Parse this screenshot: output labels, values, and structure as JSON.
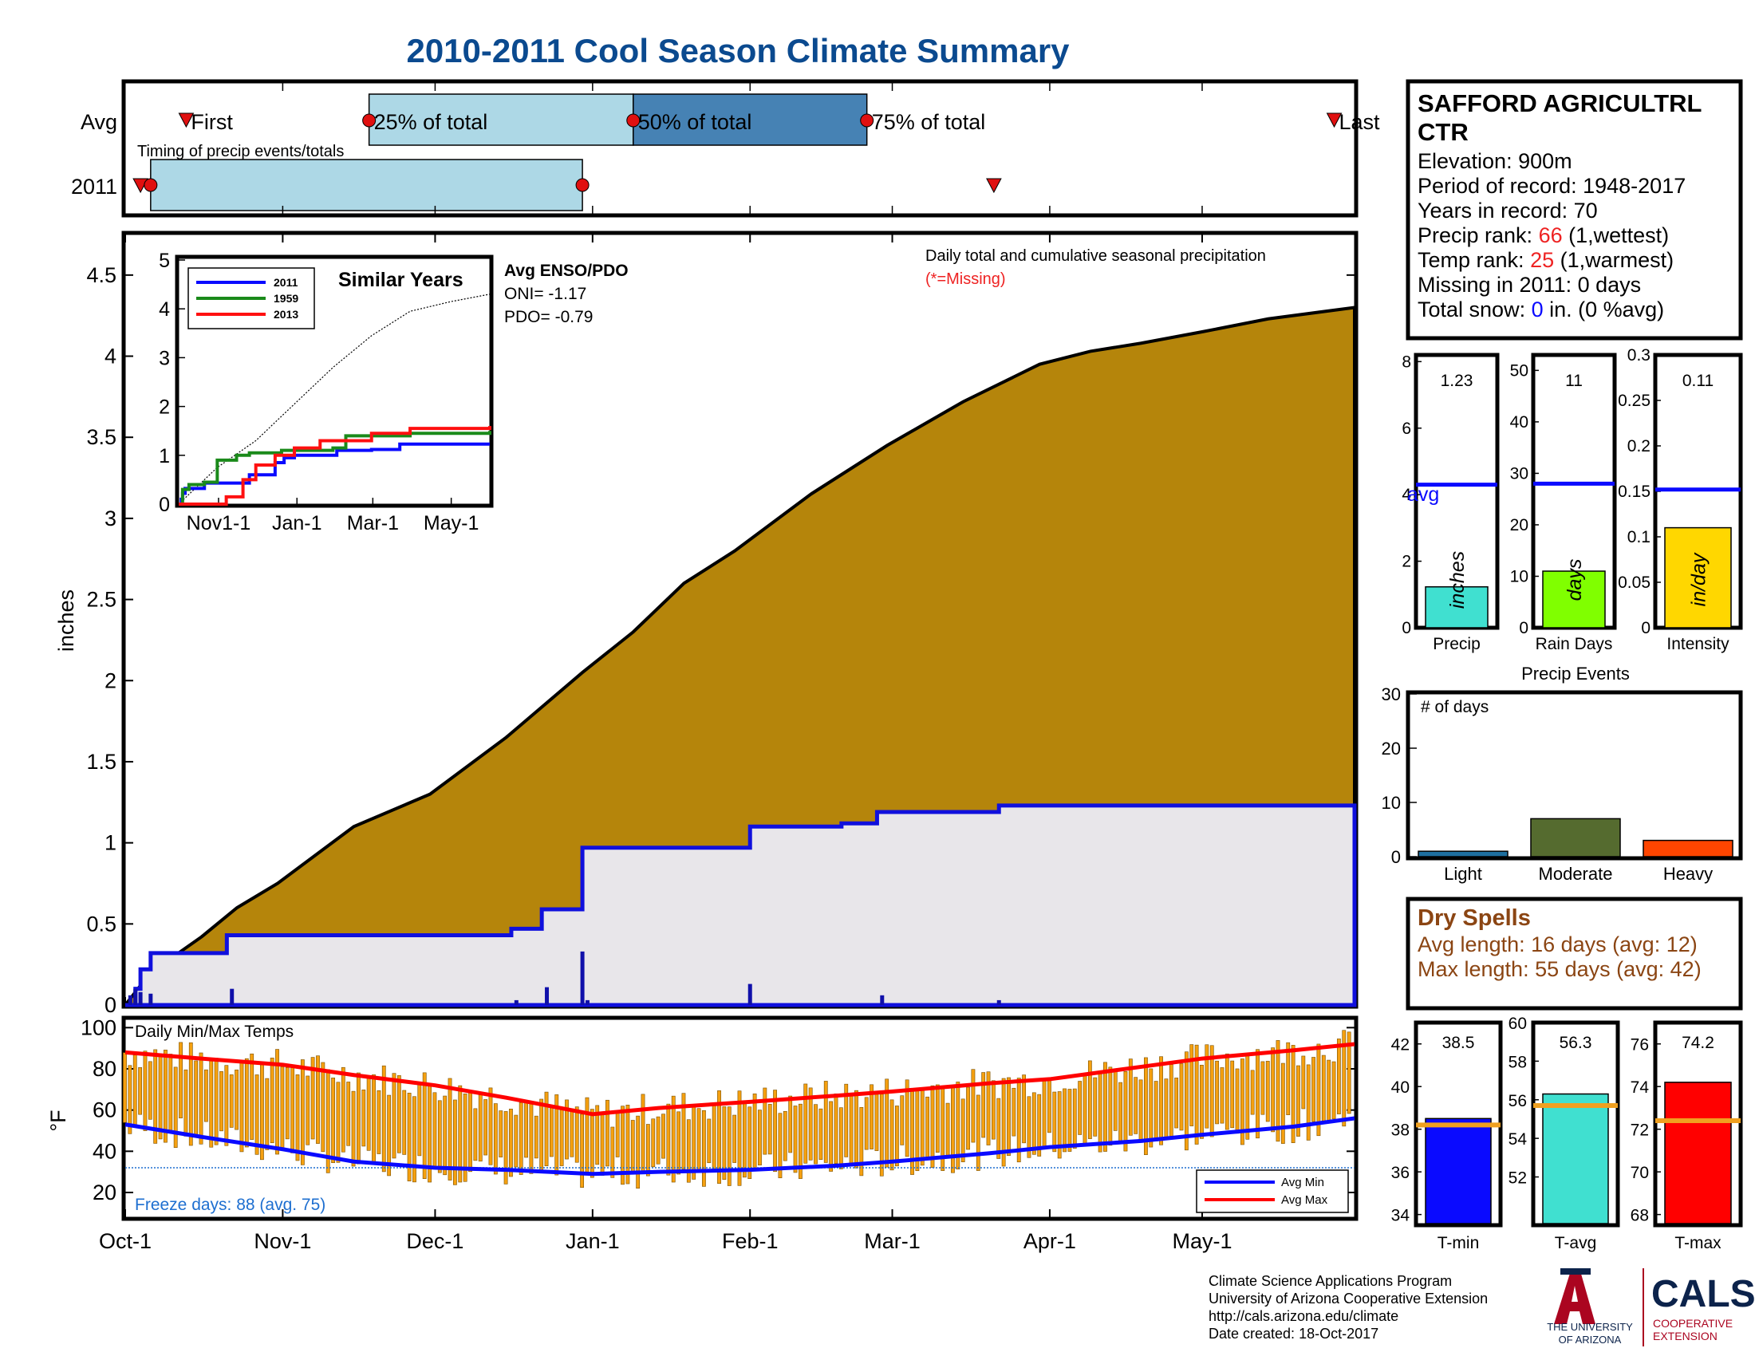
{
  "title": "2010-2011 Cool Season Climate Summary",
  "colors": {
    "title": "#0b4a8f",
    "cumulative_avg": "#b5850b",
    "cumulative_2011": "#1010dd",
    "fill_2011": "#e8e6ea",
    "box_light": "#add8e6",
    "box_dark": "#4682b4",
    "marker": "#e01010",
    "tmin": "#0a0aff",
    "tavg": "#40e0d0",
    "tmax": "#ff0000",
    "avg_line": "#f0a020",
    "precip_bar": "#40e0d0",
    "raindays_bar": "#80ff00",
    "intensity_bar": "#ffd700",
    "light": "#1e6f9f",
    "moderate": "#556b2f",
    "heavy": "#ff4500",
    "dryspell": "#8b4513",
    "red": "#ee2222",
    "blue": "#0a0aff",
    "ua_red": "#ab0520",
    "ua_navy": "#0c234b"
  },
  "timing_panel": {
    "avg_label": "Avg",
    "year_label": "2011",
    "annotation": "Timing of precip events/totals",
    "first_label": "First",
    "p25_label": "25% of total",
    "p50_label": "50% of total",
    "p75_label": "75% of total",
    "last_label": "Last",
    "avg_first": 12,
    "avg_p25": 48,
    "avg_p50": 100,
    "avg_p75": 146,
    "avg_last": 238,
    "y2011_first": 3,
    "y2011_p25": 5,
    "y2011_p50": 90,
    "y2011_last": 171
  },
  "station_box": {
    "name": "SAFFORD AGRICULTRL",
    "name2": "CTR",
    "elevation": "Elevation: 900m",
    "period": "Period of record: 1948-2017",
    "years": "Years in record: 70",
    "precip_rank_prefix": "Precip rank: ",
    "precip_rank_value": "66",
    "precip_rank_suffix": " (1,wettest)",
    "temp_rank_prefix": "Temp rank: ",
    "temp_rank_value": "25",
    "temp_rank_suffix": " (1,warmest)",
    "missing": "Missing in 2011: 0 days",
    "snow_prefix": "Total snow: ",
    "snow_value": "0",
    "snow_suffix": " in. (0 %avg)"
  },
  "chart_data": [
    {
      "type": "area",
      "title": "Daily total and cumulative seasonal precipitation",
      "subtitle": "(*=Missing)",
      "ylabel": "inches",
      "ylim": [
        0,
        4.75
      ],
      "yticks": [
        "0",
        "0.5",
        "1",
        "1.5",
        "2",
        "2.5",
        "3",
        "3.5",
        "4",
        "4.5"
      ],
      "xtick_labels": [
        "Oct-1",
        "Nov-1",
        "Dec-1",
        "Jan-1",
        "Feb-1",
        "Mar-1",
        "Apr-1",
        "May-1"
      ],
      "xtick_days": [
        0,
        31,
        61,
        92,
        123,
        151,
        182,
        212
      ],
      "x_days_total": 242,
      "avg_cumulative": {
        "x": [
          0,
          5,
          10,
          15,
          22,
          30,
          45,
          60,
          75,
          90,
          100,
          110,
          120,
          135,
          150,
          165,
          180,
          190,
          200,
          212,
          225,
          242
        ],
        "y": [
          0,
          0.2,
          0.31,
          0.42,
          0.6,
          0.75,
          1.1,
          1.3,
          1.65,
          2.05,
          2.3,
          2.6,
          2.8,
          3.15,
          3.45,
          3.72,
          3.95,
          4.03,
          4.08,
          4.15,
          4.23,
          4.3
        ]
      },
      "cumulative_2011": {
        "x": [
          0,
          2,
          3,
          5,
          20,
          76,
          82,
          90,
          123,
          141,
          148,
          172,
          242
        ],
        "y": [
          0,
          0.1,
          0.22,
          0.32,
          0.43,
          0.47,
          0.59,
          0.97,
          1.1,
          1.12,
          1.19,
          1.23,
          1.23
        ]
      },
      "daily_2011": {
        "x": [
          1,
          2,
          3,
          5,
          21,
          77,
          83,
          90,
          91,
          123,
          149,
          172
        ],
        "y": [
          0.06,
          0.1,
          0.08,
          0.07,
          0.1,
          0.03,
          0.11,
          0.33,
          0.03,
          0.13,
          0.06,
          0.03
        ]
      }
    },
    {
      "type": "line",
      "title": "Similar Years",
      "xtick_labels": [
        "Nov1-1",
        "Jan-1",
        "Mar-1",
        "May-1"
      ],
      "xtick_days": [
        31,
        92,
        151,
        212
      ],
      "yticks": [
        "0",
        "1",
        "2",
        "3",
        "4",
        "5"
      ],
      "ylim": [
        0,
        5
      ],
      "series": [
        {
          "name": "2011",
          "color": "#0a0aff",
          "x": [
            0,
            2,
            3,
            5,
            20,
            45,
            55,
            75,
            82,
            90,
            123,
            150,
            172,
            242
          ],
          "y": [
            0,
            0.1,
            0.22,
            0.32,
            0.43,
            0.43,
            0.6,
            0.85,
            0.95,
            1.0,
            1.1,
            1.12,
            1.23,
            1.23
          ]
        },
        {
          "name": "1959",
          "color": "#1a8a1a",
          "x": [
            0,
            3,
            8,
            20,
            30,
            45,
            55,
            80,
            120,
            130,
            180,
            242
          ],
          "y": [
            0,
            0.3,
            0.4,
            0.45,
            0.9,
            1.0,
            1.05,
            1.1,
            1.15,
            1.4,
            1.45,
            1.5
          ]
        },
        {
          "name": "2013",
          "color": "#ff1010",
          "x": [
            0,
            30,
            37,
            50,
            60,
            75,
            90,
            110,
            150,
            180,
            242
          ],
          "y": [
            0,
            0,
            0.15,
            0.5,
            0.8,
            1.0,
            1.15,
            1.3,
            1.45,
            1.55,
            1.6
          ]
        }
      ],
      "avg_dotted": {
        "x": [
          0,
          30,
          60,
          90,
          120,
          150,
          180,
          212,
          242
        ],
        "y": [
          0,
          0.75,
          1.3,
          2.05,
          2.8,
          3.45,
          3.95,
          4.15,
          4.3
        ]
      },
      "enso_title": "Avg ENSO/PDO",
      "oni": "ONI= -1.17",
      "pdo": "PDO= -0.79"
    },
    {
      "type": "bar",
      "title": "Daily Min/Max Temps",
      "ylabel": "°F",
      "ylim": [
        8,
        104
      ],
      "yticks": [
        "20",
        "40",
        "60",
        "80",
        "100"
      ],
      "freeze_text": "Freeze days: 88 (avg. 75)",
      "freeze_line": 32,
      "legend": [
        "Avg Min",
        "Avg Max"
      ],
      "avg_max": {
        "x": [
          0,
          15,
          31,
          45,
          61,
          75,
          92,
          105,
          123,
          140,
          151,
          170,
          182,
          200,
          212,
          230,
          242
        ],
        "y": [
          88,
          85,
          82,
          77,
          72,
          66,
          58,
          61,
          64,
          67,
          69,
          73,
          75,
          81,
          85,
          89,
          92
        ]
      },
      "avg_min": {
        "x": [
          0,
          15,
          31,
          45,
          61,
          75,
          92,
          105,
          123,
          140,
          151,
          170,
          182,
          200,
          212,
          230,
          242
        ],
        "y": [
          53,
          47,
          41,
          35,
          32,
          31,
          29,
          30,
          31,
          33,
          35,
          39,
          42,
          45,
          48,
          52,
          56
        ]
      }
    },
    {
      "type": "bar",
      "categories": [
        "Precip",
        "Rain Days",
        "Intensity"
      ],
      "values": [
        1.23,
        11,
        0.11
      ],
      "value_labels": [
        "1.23",
        "11",
        "0.11"
      ],
      "avg": [
        4.3,
        28,
        0.152
      ],
      "ylims": [
        [
          0,
          8.2
        ],
        [
          0,
          53
        ],
        [
          0,
          0.3
        ]
      ],
      "yticks": [
        [
          "0",
          "2",
          "4",
          "6",
          "8"
        ],
        [
          "0",
          "10",
          "20",
          "30",
          "40",
          "50"
        ],
        [
          "0",
          "0.05",
          "0.1",
          "0.15",
          "0.2",
          "0.25",
          "0.3"
        ]
      ],
      "units": [
        "inches",
        "days",
        "in/day"
      ],
      "avg_label": "avg"
    },
    {
      "type": "bar",
      "title": "Precip Events",
      "ylabel": "# of days",
      "categories": [
        "Light",
        "Moderate",
        "Heavy"
      ],
      "values": [
        1,
        7,
        3
      ],
      "ylim": [
        0,
        30
      ],
      "yticks": [
        "0",
        "10",
        "20",
        "30"
      ]
    },
    {
      "type": "bar",
      "categories": [
        "T-min",
        "T-avg",
        "T-max"
      ],
      "values": [
        38.5,
        56.3,
        74.2
      ],
      "value_labels": [
        "38.5",
        "56.3",
        "74.2"
      ],
      "avg": [
        38.2,
        55.7,
        72.4
      ],
      "ylims": [
        [
          33.5,
          43
        ],
        [
          49.5,
          60
        ],
        [
          67.5,
          77
        ]
      ],
      "yticks": [
        [
          "34",
          "36",
          "38",
          "40",
          "42"
        ],
        [
          "52",
          "54",
          "56",
          "58",
          "60"
        ],
        [
          "68",
          "70",
          "72",
          "74",
          "76"
        ]
      ]
    }
  ],
  "dry_spells": {
    "title": "Dry Spells",
    "avg_length": "Avg length: 16 days (avg: 12)",
    "max_length": "Max length: 55 days (avg: 42)"
  },
  "footer": {
    "line1": "Climate Science Applications Program",
    "line2": "University of Arizona Cooperative Extension",
    "line3": "http://cals.arizona.edu/climate",
    "line4": " Date created: 18-Oct-2017"
  },
  "logos": {
    "ua_line1": "THE UNIVERSITY",
    "ua_line2": "OF ARIZONA",
    "cals": "CALS",
    "cals_sub1": "COOPERATIVE",
    "cals_sub2": "EXTENSION"
  }
}
